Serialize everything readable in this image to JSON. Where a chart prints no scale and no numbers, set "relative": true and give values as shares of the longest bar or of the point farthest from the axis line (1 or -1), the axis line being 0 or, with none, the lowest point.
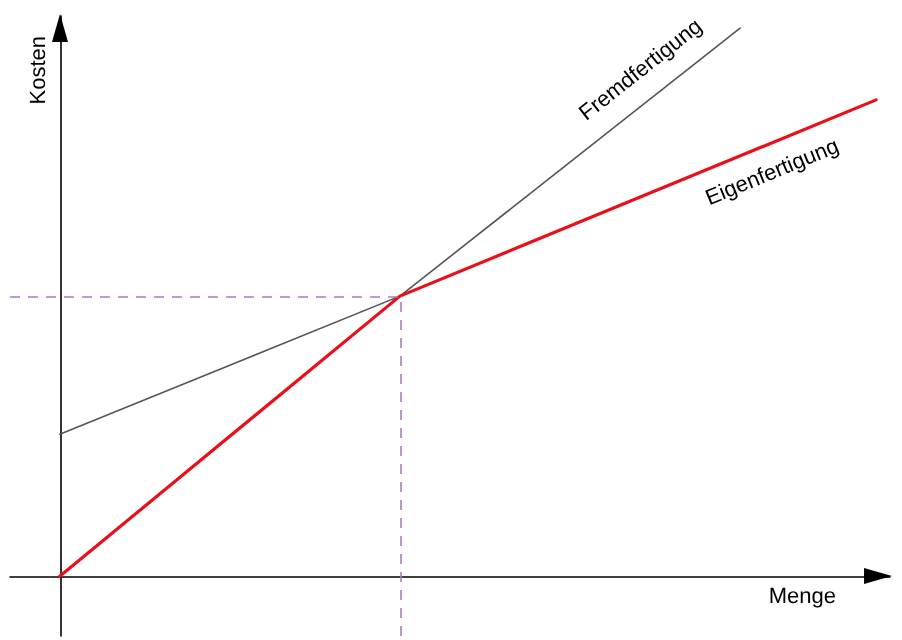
{
  "chart_data": {
    "type": "line",
    "relative": true,
    "xlabel": "Menge",
    "ylabel": "Kosten",
    "categories": [
      null,
      null,
      null,
      null,
      null,
      null,
      null,
      null,
      null,
      null,
      null,
      null,
      null
    ],
    "series": [
      {
        "name": "Fremdfertigung",
        "color": "#555555",
        "values": [
          0.259,
          null,
          null,
          null,
          null,
          0.511,
          null,
          null,
          null,
          null,
          1,
          null,
          null
        ]
      },
      {
        "name": "Eigenfertigung",
        "color": "#e8101a",
        "values": [
          0,
          null,
          null,
          null,
          null,
          0.511,
          null,
          null,
          null,
          null,
          null,
          null,
          0.869
        ]
      }
    ],
    "ref_lines": [
      {
        "axis": "y",
        "value": 0.511,
        "color": "#a97cbf",
        "line_style": "dashed"
      }
    ],
    "grid": false,
    "legend": false,
    "marker": "none",
    "line_style": "solid"
  }
}
